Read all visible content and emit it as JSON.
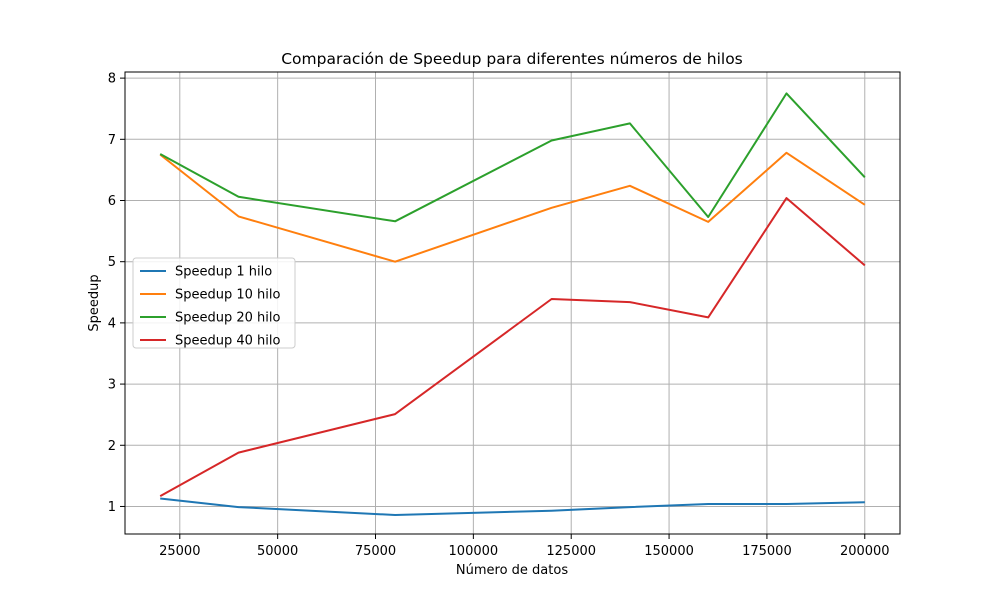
{
  "chart_data": {
    "type": "line",
    "title": "Comparación de Speedup para diferentes números de hilos",
    "xlabel": "Número de datos",
    "ylabel": "Speedup",
    "x": [
      20000,
      40000,
      80000,
      120000,
      140000,
      160000,
      180000,
      200000
    ],
    "xlim": [
      11000,
      209000
    ],
    "ylim": [
      0.55,
      8.1
    ],
    "xticks": [
      25000,
      50000,
      75000,
      100000,
      125000,
      150000,
      175000,
      200000
    ],
    "yticks": [
      1,
      2,
      3,
      4,
      5,
      6,
      7,
      8
    ],
    "grid": true,
    "legend_position": "center-left",
    "series": [
      {
        "name": "Speedup 1 hilo",
        "color": "#1f77b4",
        "values": [
          1.13,
          0.99,
          0.86,
          0.93,
          0.99,
          1.04,
          1.04,
          1.07
        ]
      },
      {
        "name": "Speedup 10 hilo",
        "color": "#ff7f0e",
        "values": [
          6.75,
          5.74,
          5.0,
          5.88,
          6.24,
          5.65,
          6.78,
          5.93
        ]
      },
      {
        "name": "Speedup 20 hilo",
        "color": "#2ca02c",
        "values": [
          6.76,
          6.06,
          5.66,
          6.98,
          7.26,
          5.73,
          7.75,
          6.38
        ]
      },
      {
        "name": "Speedup 40 hilo",
        "color": "#d62728",
        "values": [
          1.17,
          1.88,
          2.51,
          4.39,
          4.34,
          4.09,
          6.04,
          4.94
        ]
      }
    ]
  }
}
